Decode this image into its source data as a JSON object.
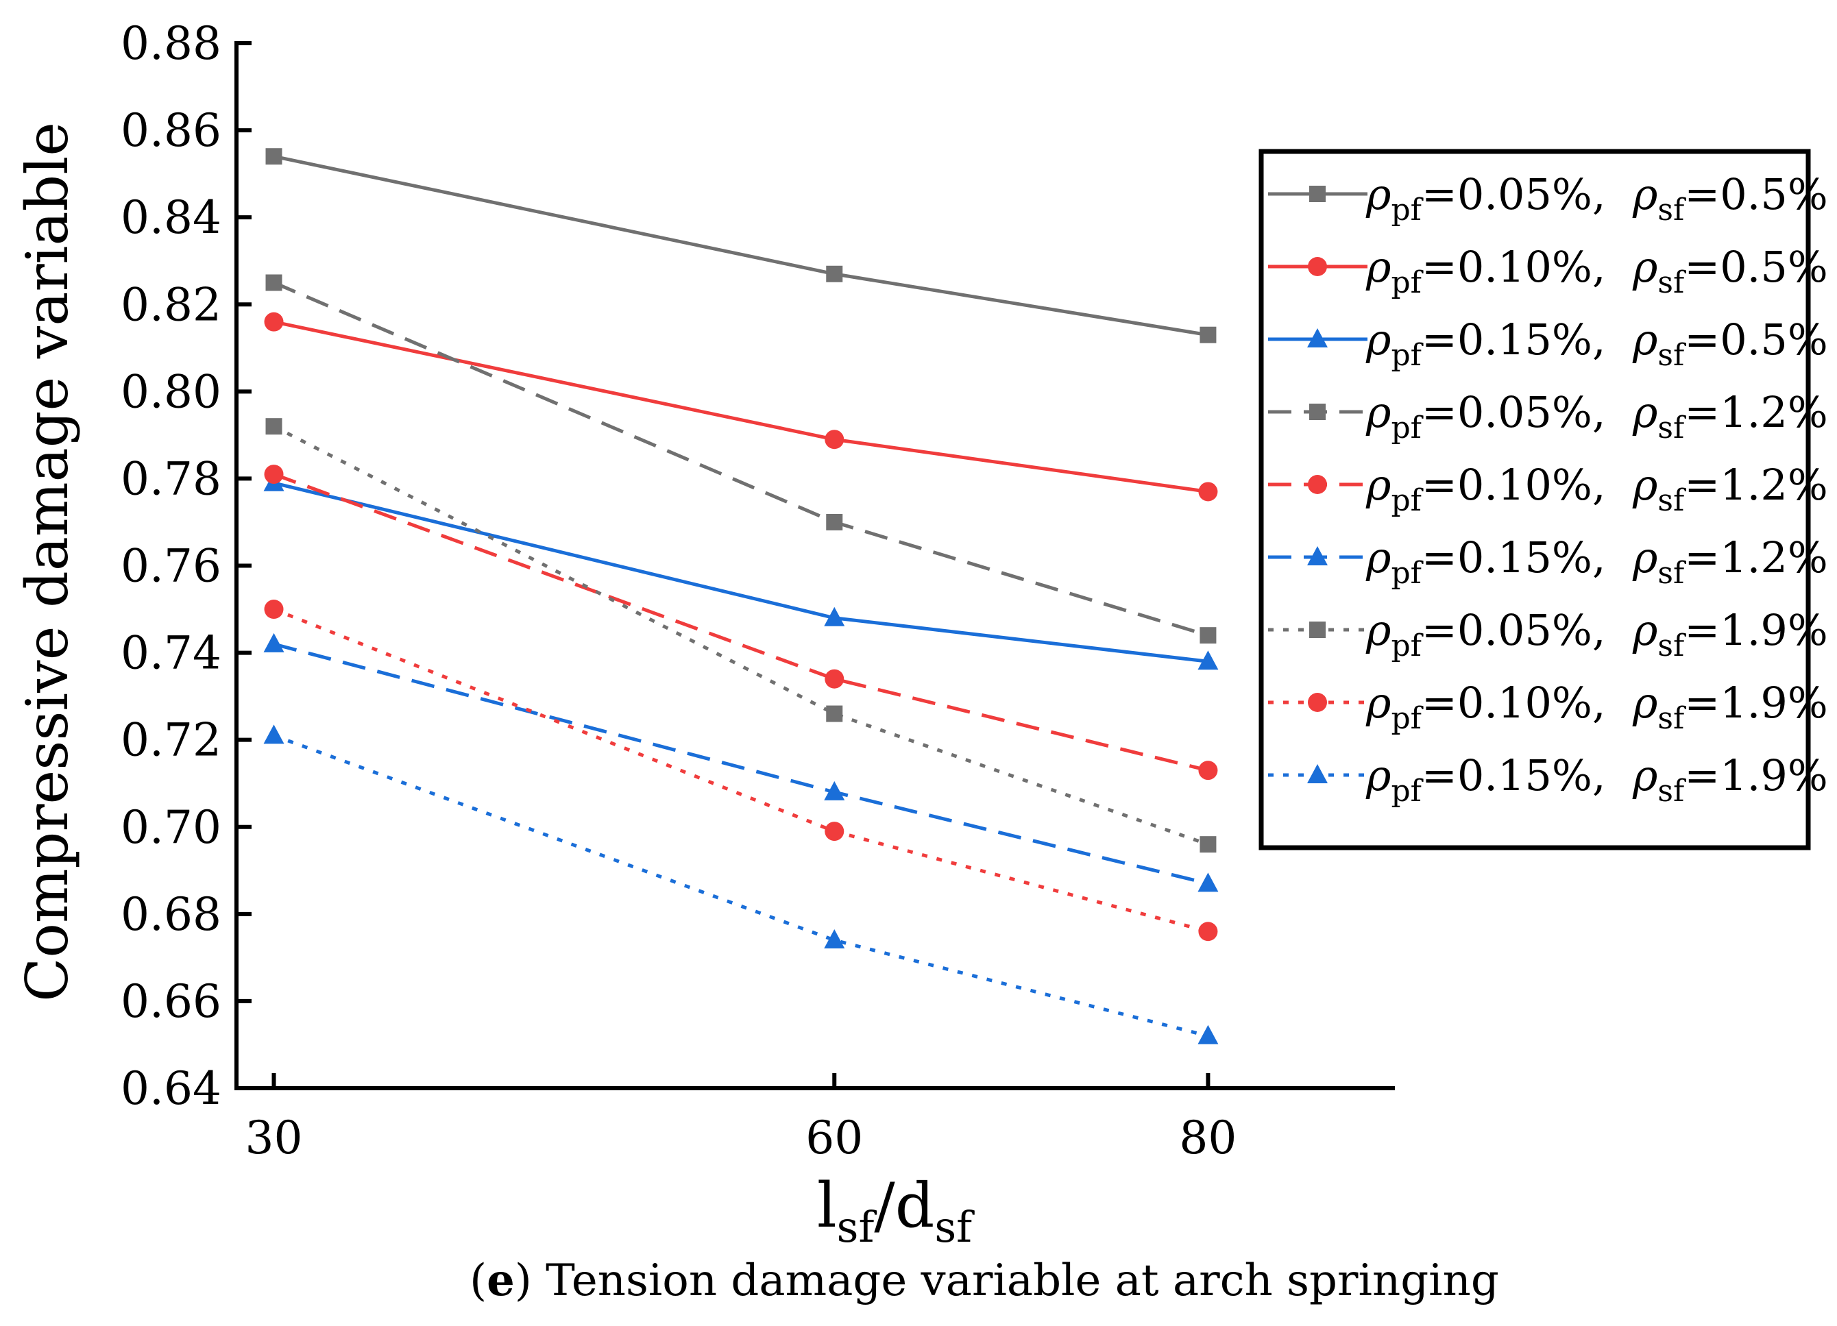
{
  "chart_data": {
    "type": "line",
    "title": "",
    "xlabel": {
      "main": "l",
      "main_sub": "sf",
      "slash": "/d",
      "slash_sub": "sf"
    },
    "ylabel": "Compressive damage variable",
    "caption": {
      "label": "e",
      "text": ") Tension damage variable at arch springing",
      "open": "("
    },
    "x": [
      30,
      60,
      80
    ],
    "x_ticks": [
      "30",
      "60",
      "80"
    ],
    "xlim": [
      28,
      90
    ],
    "ylim": [
      0.64,
      0.88
    ],
    "y_ticks": [
      "0.64",
      "0.66",
      "0.68",
      "0.70",
      "0.72",
      "0.74",
      "0.76",
      "0.78",
      "0.80",
      "0.82",
      "0.84",
      "0.86",
      "0.88"
    ],
    "legend_position": "right",
    "series": [
      {
        "name": "ρpf=0.05%,  ρsf=0.5%",
        "rho_pf": "=0.05%,",
        "rho_sf": "=0.5%",
        "color": "#707070",
        "style": "solid",
        "marker": "square",
        "values": [
          0.854,
          0.827,
          0.813
        ]
      },
      {
        "name": "ρpf=0.10%,  ρsf=0.5%",
        "rho_pf": "=0.10%,",
        "rho_sf": "=0.5%",
        "color": "#f03c3c",
        "style": "solid",
        "marker": "circle",
        "values": [
          0.816,
          0.789,
          0.777
        ]
      },
      {
        "name": "ρpf=0.15%,  ρsf=0.5%",
        "rho_pf": "=0.15%,",
        "rho_sf": "=0.5%",
        "color": "#1a6ed8",
        "style": "solid",
        "marker": "triangle",
        "values": [
          0.779,
          0.748,
          0.738
        ]
      },
      {
        "name": "ρpf=0.05%,  ρsf=1.2%",
        "rho_pf": "=0.05%,",
        "rho_sf": "=1.2%",
        "color": "#707070",
        "style": "dashed",
        "marker": "square",
        "values": [
          0.825,
          0.77,
          0.744
        ]
      },
      {
        "name": "ρpf=0.10%,  ρsf=1.2%",
        "rho_pf": "=0.10%,",
        "rho_sf": "=1.2%",
        "color": "#f03c3c",
        "style": "dashed",
        "marker": "circle",
        "values": [
          0.781,
          0.734,
          0.713
        ]
      },
      {
        "name": "ρpf=0.15%,  ρsf=1.2%",
        "rho_pf": "=0.15%,",
        "rho_sf": "=1.2%",
        "color": "#1a6ed8",
        "style": "dashed",
        "marker": "triangle",
        "values": [
          0.742,
          0.708,
          0.687
        ]
      },
      {
        "name": "ρpf=0.05%,  ρsf=1.9%",
        "rho_pf": "=0.05%,",
        "rho_sf": "=1.9%",
        "color": "#707070",
        "style": "dotted",
        "marker": "square",
        "values": [
          0.792,
          0.726,
          0.696
        ]
      },
      {
        "name": "ρpf=0.10%,  ρsf=1.9%",
        "rho_pf": "=0.10%,",
        "rho_sf": "=1.9%",
        "color": "#f03c3c",
        "style": "dotted",
        "marker": "circle",
        "values": [
          0.75,
          0.699,
          0.676
        ]
      },
      {
        "name": "ρpf=0.15%,  ρsf=1.9%",
        "rho_pf": "=0.15%,",
        "rho_sf": "=1.9%",
        "color": "#1a6ed8",
        "style": "dotted",
        "marker": "triangle",
        "values": [
          0.721,
          0.674,
          0.652
        ]
      }
    ]
  }
}
